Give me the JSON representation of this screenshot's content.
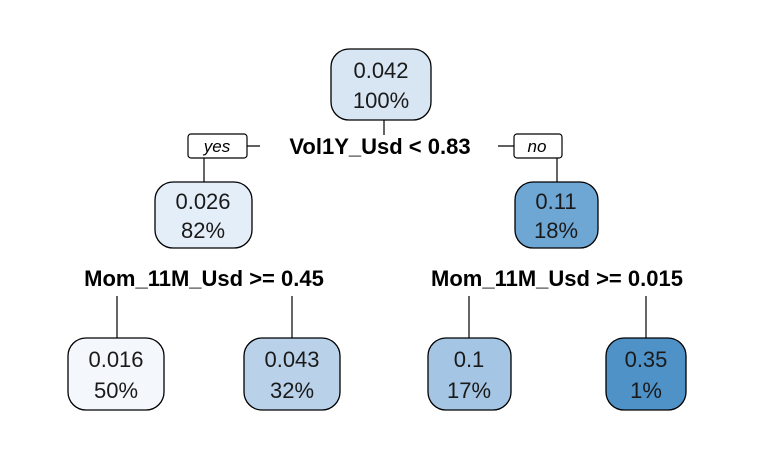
{
  "tree": {
    "root": {
      "value": "0.042",
      "percent": "100%",
      "fill": "#d8e6f4"
    },
    "root_split": {
      "label": "Vol1Y_Usd < 0.83",
      "yes_label": "yes",
      "no_label": "no"
    },
    "left": {
      "value": "0.026",
      "percent": "82%",
      "fill": "#e4eef8"
    },
    "right": {
      "value": "0.11",
      "percent": "18%",
      "fill": "#6fa7d4"
    },
    "left_split": {
      "label": "Mom_11M_Usd >= 0.45"
    },
    "right_split": {
      "label": "Mom_11M_Usd >= 0.015"
    },
    "leaves": [
      {
        "value": "0.016",
        "percent": "50%",
        "fill": "#f4f8fd"
      },
      {
        "value": "0.043",
        "percent": "32%",
        "fill": "#b9d2ea"
      },
      {
        "value": "0.1",
        "percent": "17%",
        "fill": "#a4c5e3"
      },
      {
        "value": "0.35",
        "percent": "1%",
        "fill": "#4f92c8"
      }
    ]
  }
}
